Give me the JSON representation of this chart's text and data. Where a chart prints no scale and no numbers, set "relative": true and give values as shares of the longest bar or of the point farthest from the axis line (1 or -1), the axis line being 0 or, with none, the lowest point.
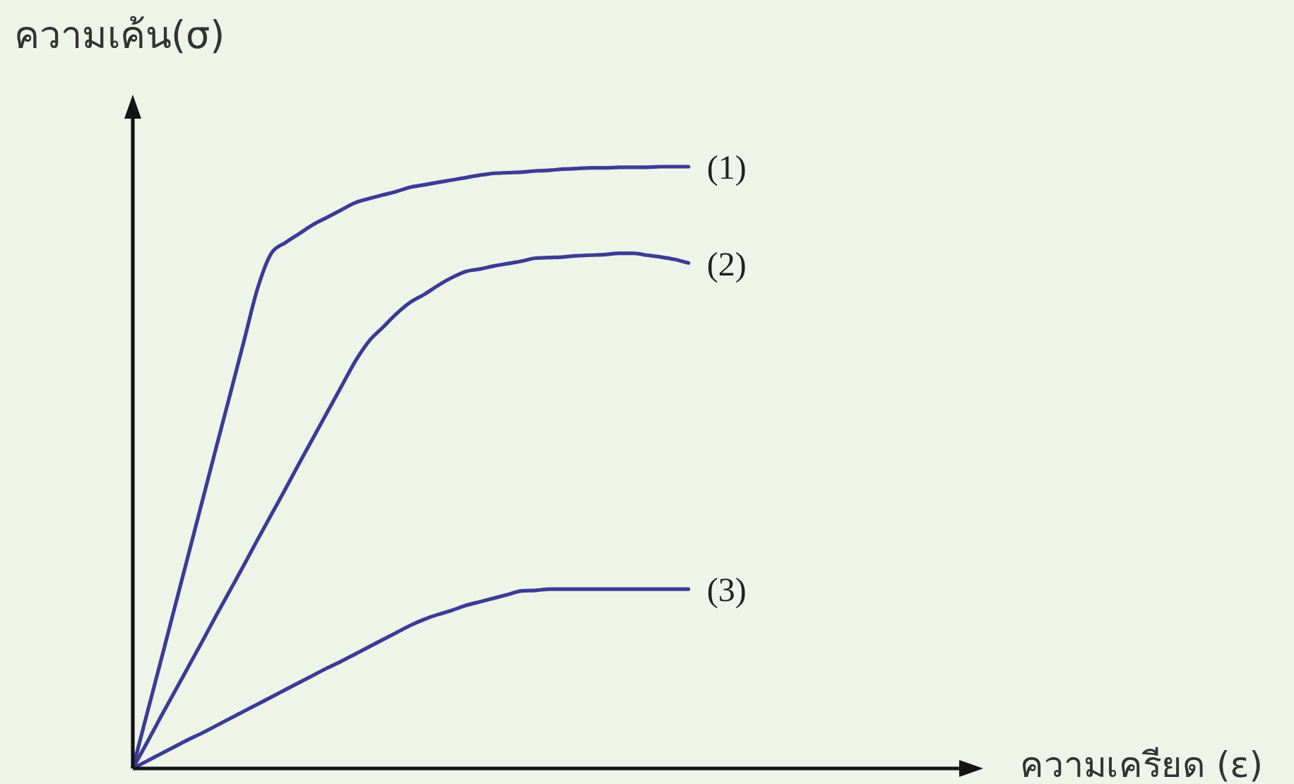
{
  "chart_data": {
    "type": "line",
    "relative": true,
    "ylabel": "ความเค้น(σ)",
    "xlabel": "ความเครียด (ε)",
    "categories": [
      null,
      null,
      null,
      null,
      null,
      null,
      null,
      null,
      null,
      null,
      null,
      null,
      null,
      null,
      null,
      null,
      null,
      null,
      null,
      null,
      null,
      null,
      null,
      null,
      null,
      null,
      null,
      null,
      null,
      null,
      null,
      null,
      null,
      null,
      null,
      null,
      null,
      null,
      null,
      null,
      null,
      null,
      null,
      null,
      null,
      null,
      null,
      null,
      null,
      null,
      null,
      null,
      null,
      null,
      null,
      null,
      null,
      null,
      null,
      null,
      null
    ],
    "series": [
      {
        "name": "(1)",
        "color": "#3b3b96",
        "values": [
          0,
          0.089,
          0.177,
          0.266,
          0.355,
          0.444,
          0.533,
          0.621,
          0.71,
          0.799,
          0.857,
          0.874,
          0.889,
          0.904,
          0.916,
          0.928,
          0.94,
          0.947,
          0.953,
          0.959,
          0.966,
          0.97,
          0.974,
          0.978,
          0.982,
          0.986,
          0.989,
          0.99,
          0.991,
          0.993,
          0.994,
          0.996,
          0.997,
          0.998,
          0.998,
          0.999,
          0.999,
          0.999,
          1,
          1,
          1,
          null,
          null,
          null,
          null,
          null,
          null,
          null,
          null,
          null,
          null,
          null,
          null,
          null,
          null,
          null,
          null,
          null,
          null,
          null,
          null
        ]
      },
      {
        "name": "(2)",
        "color": "#3b3b96",
        "values": [
          0,
          0.042,
          0.085,
          0.127,
          0.169,
          0.211,
          0.254,
          0.296,
          0.338,
          0.381,
          0.423,
          0.465,
          0.508,
          0.55,
          0.592,
          0.634,
          0.676,
          0.71,
          0.733,
          0.756,
          0.775,
          0.788,
          0.803,
          0.816,
          0.826,
          0.83,
          0.835,
          0.839,
          0.843,
          0.848,
          0.849,
          0.85,
          0.852,
          0.853,
          0.854,
          0.856,
          0.856,
          0.853,
          0.85,
          0.846,
          0.84,
          null,
          null,
          null,
          null,
          null,
          null,
          null,
          null,
          null,
          null,
          null,
          null,
          null,
          null,
          null,
          null,
          null,
          null,
          null,
          null
        ]
      },
      {
        "name": "(3)",
        "color": "#3b3b96",
        "values": [
          0,
          0.012,
          0.024,
          0.036,
          0.048,
          0.059,
          0.071,
          0.083,
          0.095,
          0.107,
          0.119,
          0.131,
          0.143,
          0.155,
          0.167,
          0.178,
          0.19,
          0.202,
          0.214,
          0.226,
          0.238,
          0.248,
          0.256,
          0.263,
          0.271,
          0.277,
          0.283,
          0.289,
          0.295,
          0.296,
          0.298,
          0.298,
          0.298,
          0.298,
          0.298,
          0.298,
          0.298,
          0.298,
          0.298,
          0.298,
          0.298,
          null,
          null,
          null,
          null,
          null,
          null,
          null,
          null,
          null,
          null,
          null,
          null,
          null,
          null,
          null,
          null,
          null,
          null,
          null,
          null
        ]
      }
    ],
    "grid": false,
    "legend": false,
    "marker": "none",
    "line_style": "solid"
  }
}
